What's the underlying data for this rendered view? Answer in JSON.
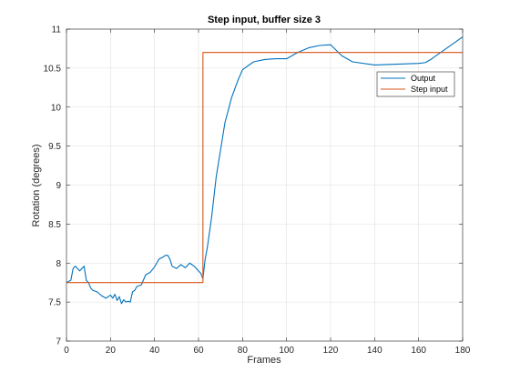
{
  "chart_data": {
    "type": "line",
    "title": "Step input, buffer size 3",
    "xlabel": "Frames",
    "ylabel": "Rotation (degrees)",
    "xlim": [
      0,
      180
    ],
    "ylim": [
      7,
      11
    ],
    "xticks": [
      0,
      20,
      40,
      60,
      80,
      100,
      120,
      140,
      160,
      180
    ],
    "yticks": [
      7,
      7.5,
      8,
      8.5,
      9,
      9.5,
      10,
      10.5,
      11
    ],
    "ytick_labels": [
      "7",
      "7.5",
      "8",
      "8.5",
      "9",
      "9.5",
      "10",
      "10.5",
      "11"
    ],
    "grid": true,
    "legend_position": "top-right",
    "series": [
      {
        "name": "Output",
        "color": "#0072BD",
        "x": [
          0,
          2,
          3,
          4,
          6,
          8,
          9,
          10,
          11,
          12,
          14,
          16,
          18,
          20,
          21,
          22,
          23,
          24,
          25,
          26,
          27,
          28,
          29,
          30,
          31,
          32,
          34,
          36,
          38,
          40,
          42,
          44,
          45,
          46,
          47,
          48,
          50,
          52,
          54,
          56,
          58,
          60,
          61,
          62,
          63,
          64,
          65,
          66,
          67,
          68,
          70,
          72,
          75,
          78,
          80,
          85,
          90,
          95,
          100,
          105,
          110,
          115,
          120,
          125,
          130,
          140,
          150,
          160,
          163,
          166,
          170,
          175,
          180
        ],
        "y": [
          7.75,
          7.78,
          7.93,
          7.96,
          7.9,
          7.96,
          7.78,
          7.75,
          7.68,
          7.65,
          7.63,
          7.58,
          7.55,
          7.59,
          7.55,
          7.6,
          7.52,
          7.57,
          7.48,
          7.53,
          7.5,
          7.51,
          7.5,
          7.63,
          7.65,
          7.7,
          7.72,
          7.85,
          7.88,
          7.95,
          8.05,
          8.08,
          8.1,
          8.1,
          8.05,
          7.96,
          7.93,
          7.98,
          7.94,
          8.0,
          7.96,
          7.9,
          7.87,
          7.8,
          8.05,
          8.2,
          8.4,
          8.6,
          8.85,
          9.1,
          9.45,
          9.8,
          10.12,
          10.35,
          10.48,
          10.58,
          10.61,
          10.62,
          10.62,
          10.7,
          10.76,
          10.79,
          10.8,
          10.66,
          10.58,
          10.54,
          10.55,
          10.56,
          10.57,
          10.62,
          10.7,
          10.8,
          10.9
        ]
      },
      {
        "name": "Step input",
        "color": "#D95319",
        "x": [
          0,
          62,
          62,
          180
        ],
        "y": [
          7.75,
          7.75,
          10.7,
          10.7
        ]
      }
    ]
  }
}
